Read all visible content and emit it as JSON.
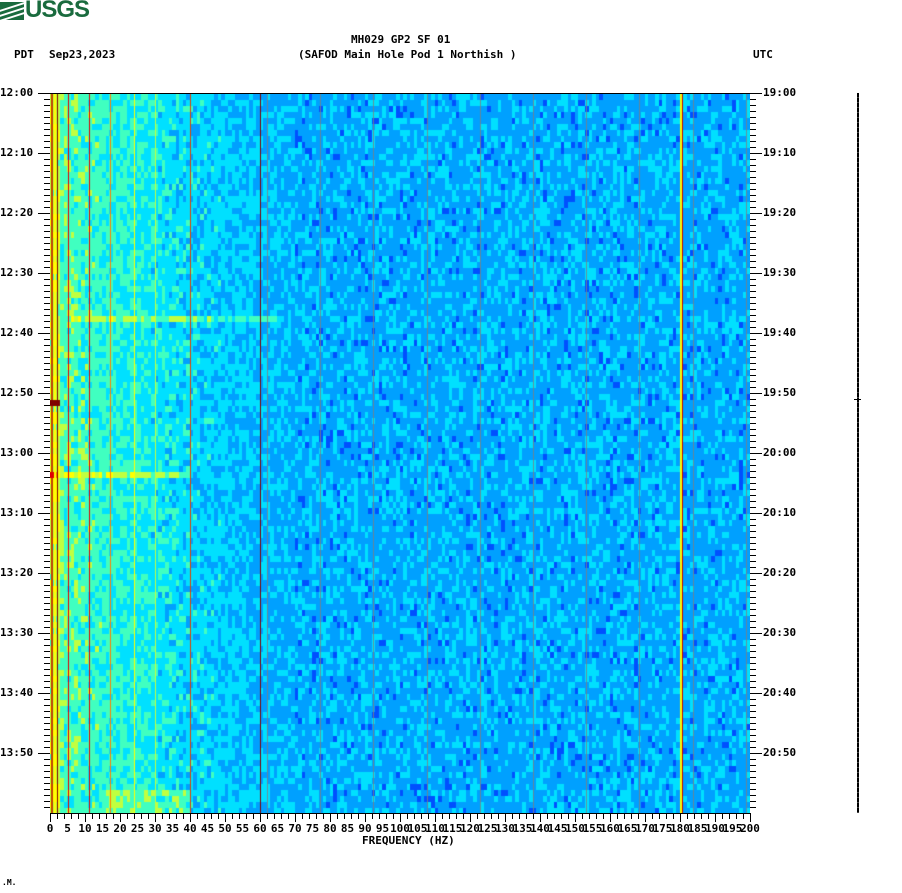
{
  "header": {
    "logo_text": "USGS",
    "title_line1": "MH029 GP2 SF 01",
    "title_line2": "(SAFOD Main Hole Pod 1 Northish )",
    "left_tz": "PDT",
    "date": "Sep23,2023",
    "right_tz": "UTC"
  },
  "footer": {
    "mark": ".M."
  },
  "colors": {
    "colormap": [
      "#0000c8",
      "#0050ff",
      "#00a0ff",
      "#00e0ff",
      "#40ffc0",
      "#c0ff40",
      "#ffff00",
      "#ff8000",
      "#e00000",
      "#800000"
    ],
    "logo_green": "#1a6b3e"
  },
  "chart_data": {
    "type": "heatmap",
    "title": "MH029 GP2 SF 01 (SAFOD Main Hole Pod 1 Northish )",
    "subtitle": "Sep23,2023",
    "xlabel": "FREQUENCY (HZ)",
    "ylabel_left": "PDT",
    "ylabel_right": "UTC",
    "xlim": [
      0,
      200
    ],
    "x_ticks": [
      "0",
      "5",
      "10",
      "15",
      "20",
      "25",
      "30",
      "35",
      "40",
      "45",
      "50",
      "55",
      "60",
      "65",
      "70",
      "75",
      "80",
      "85",
      "90",
      "95",
      "100",
      "105",
      "110",
      "115",
      "120",
      "125",
      "130",
      "135",
      "140",
      "145",
      "150",
      "155",
      "160",
      "165",
      "170",
      "175",
      "180",
      "185",
      "190",
      "195",
      "200"
    ],
    "y_ticks_left": [
      "12:00",
      "12:10",
      "12:20",
      "12:30",
      "12:40",
      "12:50",
      "13:00",
      "13:10",
      "13:20",
      "13:30",
      "13:40",
      "13:50"
    ],
    "y_ticks_right": [
      "19:00",
      "19:10",
      "19:20",
      "19:30",
      "19:40",
      "19:50",
      "20:00",
      "20:10",
      "20:20",
      "20:30",
      "20:40",
      "20:50"
    ],
    "time_range_pdt": [
      "12:00",
      "14:00"
    ],
    "time_range_utc": [
      "19:00",
      "21:00"
    ],
    "grid": false,
    "dominant_level": "blue (low power) above ~60 Hz; cyan/green/yellow (higher power) below ~40 Hz",
    "persistent_lines_hz": [
      1,
      2,
      5,
      11,
      17,
      24,
      30,
      40,
      60,
      180
    ],
    "strong_line_hz": 180,
    "events": [
      {
        "time_pdt": "12:51",
        "freq_hz": [
          0,
          3
        ],
        "level": "max (dark red)"
      },
      {
        "time_pdt": "13:03",
        "freq_hz": [
          0,
          40
        ],
        "level": "elevated broadband"
      },
      {
        "time_pdt": "12:37",
        "freq_hz": [
          5,
          65
        ],
        "level": "elevated broadband"
      }
    ]
  }
}
